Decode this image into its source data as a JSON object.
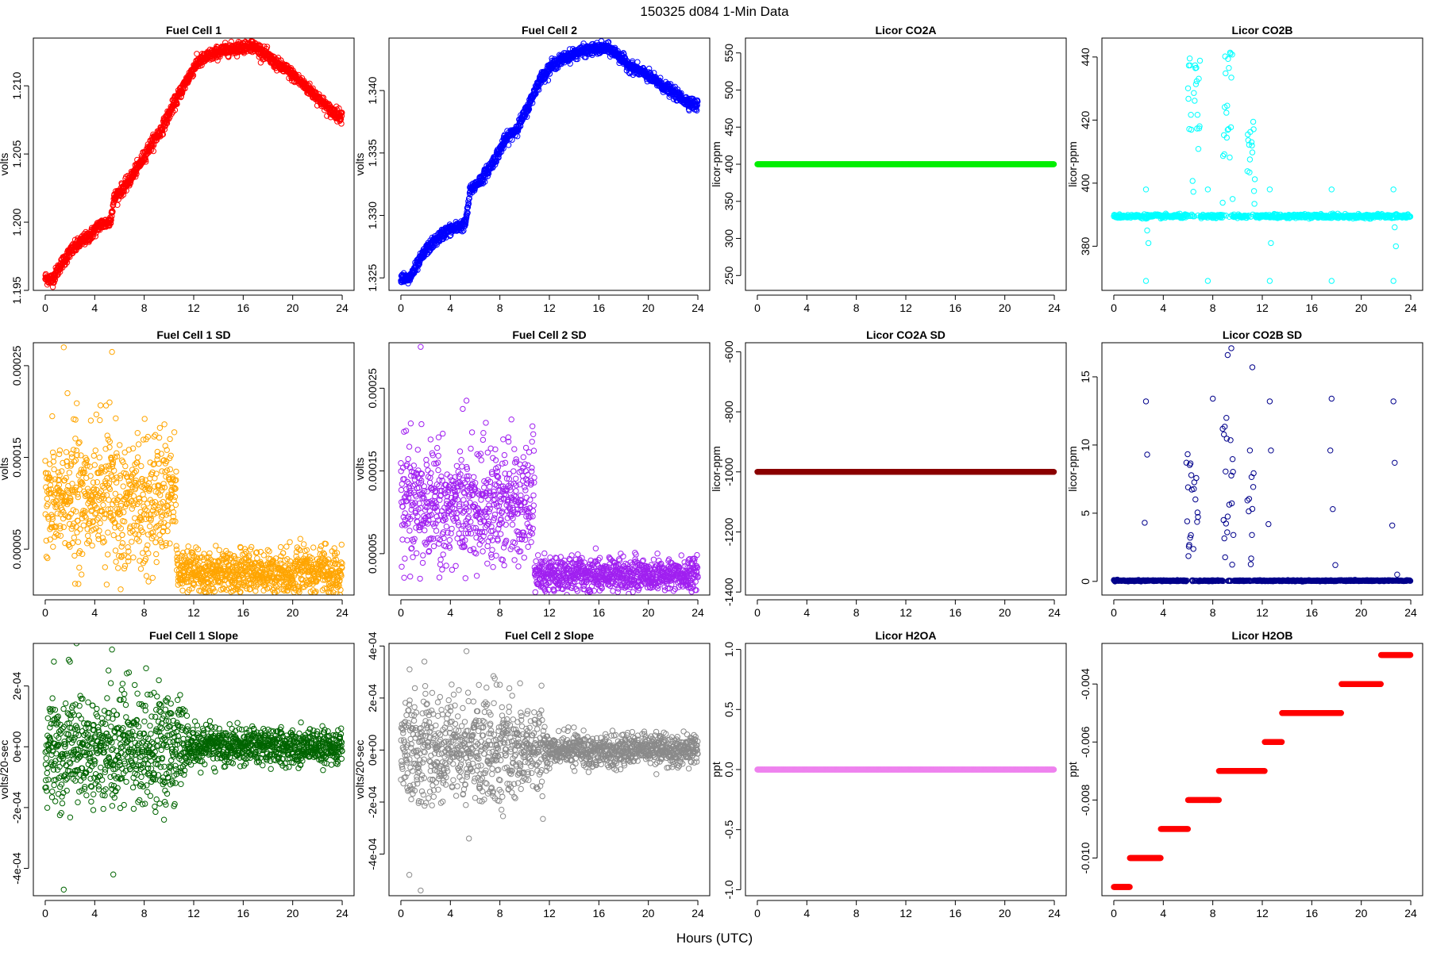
{
  "page": {
    "title": "150325   d084   1-Min Data",
    "x_axis_label": "Hours (UTC)"
  },
  "chart_data": [
    {
      "id": "fc1",
      "type": "scatter",
      "title": "Fuel Cell 1",
      "ylabel": "volts",
      "color": "#ff0000",
      "xlim": [
        0,
        24
      ],
      "xticks": [
        0,
        4,
        8,
        12,
        16,
        20,
        24
      ],
      "ylim": [
        1.195,
        1.2135
      ],
      "yticks": [
        1.195,
        1.2,
        1.205,
        1.21
      ],
      "ytick_labels": [
        "1.195",
        "1.200",
        "1.205",
        "1.210"
      ],
      "series_kind": "curve",
      "noise": 0.00022,
      "points": [
        [
          0,
          1.1959
        ],
        [
          0.6,
          1.1958
        ],
        [
          1.2,
          1.1968
        ],
        [
          2.0,
          1.1978
        ],
        [
          2.8,
          1.1985
        ],
        [
          3.6,
          1.199
        ],
        [
          4.4,
          1.1998
        ],
        [
          5.2,
          1.2
        ],
        [
          5.4,
          1.2008
        ],
        [
          5.6,
          1.2018
        ],
        [
          6.6,
          1.2028
        ],
        [
          7.6,
          1.2042
        ],
        [
          8.4,
          1.2055
        ],
        [
          9.4,
          1.2068
        ],
        [
          10.2,
          1.2083
        ],
        [
          11.2,
          1.21
        ],
        [
          12.2,
          1.2116
        ],
        [
          13.2,
          1.2122
        ],
        [
          14.4,
          1.2126
        ],
        [
          15.6,
          1.2128
        ],
        [
          16.6,
          1.213
        ],
        [
          17.4,
          1.2126
        ],
        [
          18.4,
          1.2118
        ],
        [
          19.6,
          1.2111
        ],
        [
          21.0,
          1.21
        ],
        [
          22.2,
          1.209
        ],
        [
          23.0,
          1.2082
        ],
        [
          23.9,
          1.2078
        ]
      ]
    },
    {
      "id": "fc2",
      "type": "scatter",
      "title": "Fuel Cell 2",
      "ylabel": "volts",
      "color": "#0000ff",
      "xlim": [
        0,
        24
      ],
      "xticks": [
        0,
        4,
        8,
        12,
        16,
        20,
        24
      ],
      "ylim": [
        1.324,
        1.3442
      ],
      "yticks": [
        1.325,
        1.33,
        1.335,
        1.34
      ],
      "ytick_labels": [
        "1.325",
        "1.330",
        "1.335",
        "1.340"
      ],
      "series_kind": "curve",
      "noise": 0.00022,
      "points": [
        [
          0,
          1.3251
        ],
        [
          0.6,
          1.3248
        ],
        [
          1.2,
          1.3258
        ],
        [
          2.0,
          1.3272
        ],
        [
          2.8,
          1.328
        ],
        [
          3.6,
          1.3287
        ],
        [
          4.4,
          1.329
        ],
        [
          5.2,
          1.3293
        ],
        [
          5.4,
          1.3305
        ],
        [
          5.6,
          1.332
        ],
        [
          6.6,
          1.333
        ],
        [
          7.6,
          1.3345
        ],
        [
          8.4,
          1.336
        ],
        [
          9.4,
          1.337
        ],
        [
          10.2,
          1.3385
        ],
        [
          11.2,
          1.3408
        ],
        [
          12.2,
          1.342
        ],
        [
          13.2,
          1.3426
        ],
        [
          14.4,
          1.3431
        ],
        [
          15.6,
          1.3433
        ],
        [
          16.6,
          1.3434
        ],
        [
          17.4,
          1.343
        ],
        [
          18.4,
          1.342
        ],
        [
          19.6,
          1.3414
        ],
        [
          21.0,
          1.3405
        ],
        [
          22.2,
          1.3397
        ],
        [
          23.0,
          1.3392
        ],
        [
          23.9,
          1.3388
        ]
      ]
    },
    {
      "id": "co2a",
      "type": "scatter",
      "title": "Licor CO2A",
      "ylabel": "licor-ppm",
      "color": "#00ee00",
      "xlim": [
        0,
        24
      ],
      "xticks": [
        0,
        4,
        8,
        12,
        16,
        20,
        24
      ],
      "ylim": [
        230,
        570
      ],
      "yticks": [
        250,
        300,
        350,
        400,
        450,
        500,
        550
      ],
      "ytick_labels": [
        "250",
        "300",
        "350",
        "400",
        "450",
        "500",
        "550"
      ],
      "series_kind": "constant",
      "value": 400
    },
    {
      "id": "co2b",
      "type": "scatter",
      "title": "Licor CO2B",
      "ylabel": "licor-ppm",
      "color": "#00ffff",
      "xlim": [
        0,
        24
      ],
      "xticks": [
        0,
        4,
        8,
        12,
        16,
        20,
        24
      ],
      "ylim": [
        366,
        446
      ],
      "yticks": [
        380,
        400,
        420,
        440
      ],
      "ytick_labels": [
        "380",
        "400",
        "420",
        "440"
      ],
      "series_kind": "baseline",
      "baseline": 389.5,
      "noise": 0.3,
      "bursts": [
        [
          6.0,
          7.0,
          392,
          440
        ],
        [
          8.8,
          9.6,
          392,
          444
        ],
        [
          10.8,
          11.4,
          392,
          420
        ]
      ],
      "outliers": [
        [
          2.6,
          398
        ],
        [
          2.6,
          369
        ],
        [
          2.7,
          385
        ],
        [
          2.8,
          381
        ],
        [
          7.6,
          398
        ],
        [
          7.6,
          369
        ],
        [
          12.6,
          398
        ],
        [
          12.6,
          369
        ],
        [
          12.7,
          381
        ],
        [
          17.6,
          398
        ],
        [
          17.6,
          369
        ],
        [
          22.6,
          398
        ],
        [
          22.6,
          369
        ],
        [
          22.7,
          386
        ],
        [
          22.8,
          380
        ]
      ]
    },
    {
      "id": "fc1sd",
      "type": "scatter",
      "title": "Fuel Cell 1 SD",
      "ylabel": "volts",
      "color": "#ffa500",
      "xlim": [
        0,
        24
      ],
      "xticks": [
        0,
        4,
        8,
        12,
        16,
        20,
        24
      ],
      "ylim": [
        0.0,
        0.000275
      ],
      "yticks": [
        5e-05,
        0.00015,
        0.00025
      ],
      "ytick_labels": [
        "0.00005",
        "0.00015",
        "0.00025"
      ],
      "series_kind": "scatter2",
      "seg1": [
        0,
        10.6,
        0.000105,
        3.5e-05
      ],
      "seg2": [
        10.6,
        24,
        2.5e-05,
        1.2e-05
      ],
      "outliers": [
        [
          1.5,
          0.00027
        ],
        [
          5.4,
          0.000265
        ],
        [
          1.8,
          0.00022
        ],
        [
          5.2,
          0.00021
        ]
      ]
    },
    {
      "id": "fc2sd",
      "type": "scatter",
      "title": "Fuel Cell 2 SD",
      "ylabel": "volts",
      "color": "#a020f0",
      "xlim": [
        0,
        24
      ],
      "xticks": [
        0,
        4,
        8,
        12,
        16,
        20,
        24
      ],
      "ylim": [
        0.0,
        0.000305
      ],
      "yticks": [
        5e-05,
        0.00015,
        0.00025
      ],
      "ytick_labels": [
        "0.00005",
        "0.00015",
        "0.00025"
      ],
      "series_kind": "scatter2",
      "seg1": [
        0,
        10.8,
        0.00011,
        3.5e-05
      ],
      "seg2": [
        10.8,
        24,
        2.5e-05,
        1e-05
      ],
      "outliers": [
        [
          1.6,
          0.0003
        ],
        [
          5.3,
          0.000235
        ],
        [
          5.0,
          0.000225
        ]
      ]
    },
    {
      "id": "co2asd",
      "type": "scatter",
      "title": "Licor CO2A SD",
      "ylabel": "licor-ppm",
      "color": "#8b0000",
      "xlim": [
        0,
        24
      ],
      "xticks": [
        0,
        4,
        8,
        12,
        16,
        20,
        24
      ],
      "ylim": [
        -1410,
        -570
      ],
      "yticks": [
        -1400,
        -1200,
        -1000,
        -800,
        -600
      ],
      "ytick_labels": [
        "-1400",
        "-1200",
        "-1000",
        "-800",
        "-600"
      ],
      "series_kind": "constant",
      "value": -1000
    },
    {
      "id": "co2bsd",
      "type": "scatter",
      "title": "Licor CO2B SD",
      "ylabel": "licor-ppm",
      "color": "#00008b",
      "xlim": [
        0,
        24
      ],
      "xticks": [
        0,
        4,
        8,
        12,
        16,
        20,
        24
      ],
      "ylim": [
        -1,
        17.5
      ],
      "yticks": [
        0,
        5,
        10,
        15
      ],
      "ytick_labels": [
        "0",
        "5",
        "10",
        "15"
      ],
      "series_kind": "baseline",
      "baseline": 0.05,
      "noise": 0.02,
      "bursts": [
        [
          5.8,
          6.8,
          0.3,
          9.5
        ],
        [
          8.8,
          9.7,
          0.3,
          12
        ],
        [
          10.8,
          11.3,
          0.3,
          8
        ]
      ],
      "outliers": [
        [
          2.6,
          13.2
        ],
        [
          2.7,
          9.3
        ],
        [
          2.5,
          4.3
        ],
        [
          8.0,
          13.4
        ],
        [
          9.2,
          16.6
        ],
        [
          9.5,
          17.1
        ],
        [
          11.2,
          15.7
        ],
        [
          11.0,
          9.6
        ],
        [
          12.6,
          13.2
        ],
        [
          12.7,
          9.6
        ],
        [
          12.5,
          4.2
        ],
        [
          17.6,
          13.4
        ],
        [
          17.5,
          9.6
        ],
        [
          17.7,
          5.3
        ],
        [
          17.9,
          1.2
        ],
        [
          22.6,
          13.2
        ],
        [
          22.7,
          8.7
        ],
        [
          22.5,
          4.1
        ],
        [
          22.9,
          0.5
        ]
      ]
    },
    {
      "id": "fc1slope",
      "type": "scatter",
      "title": "Fuel Cell 1 Slope",
      "ylabel": "volts/20-sec",
      "color": "#006400",
      "xlim": [
        0,
        24
      ],
      "xticks": [
        0,
        4,
        8,
        12,
        16,
        20,
        24
      ],
      "ylim": [
        -0.00049,
        0.00034
      ],
      "yticks": [
        -0.0004,
        -0.0002,
        0,
        0.0002
      ],
      "ytick_labels": [
        "-4e-04",
        "-2e-04",
        "0e+00",
        "2e-04"
      ],
      "series_kind": "scatter2",
      "seg1": [
        0,
        11.5,
        0.0,
        9e-05
      ],
      "seg2": [
        11.5,
        24,
        0.0,
        3e-05
      ],
      "outliers": [
        [
          1.5,
          -0.00047
        ],
        [
          5.5,
          -0.00042
        ],
        [
          5.4,
          0.00032
        ],
        [
          2.0,
          0.00028
        ],
        [
          0.7,
          0.00028
        ],
        [
          9.6,
          -0.00024
        ]
      ]
    },
    {
      "id": "fc2slope",
      "type": "scatter",
      "title": "Fuel Cell 2 Slope",
      "ylabel": "volts/20-sec",
      "color": "#8a8a8a",
      "xlim": [
        0,
        24
      ],
      "xticks": [
        0,
        4,
        8,
        12,
        16,
        20,
        24
      ],
      "ylim": [
        -0.00056,
        0.00041
      ],
      "yticks": [
        -0.0004,
        -0.0002,
        0,
        0.0002,
        0.0004
      ],
      "ytick_labels": [
        "-4e-04",
        "-2e-04",
        "0e+00",
        "2e-04",
        "4e-04"
      ],
      "series_kind": "scatter2",
      "seg1": [
        0,
        11.5,
        0.0,
        0.0001
      ],
      "seg2": [
        11.5,
        24,
        0.0,
        3e-05
      ],
      "outliers": [
        [
          1.6,
          -0.00054
        ],
        [
          5.3,
          0.00038
        ],
        [
          5.5,
          -0.00034
        ],
        [
          1.9,
          0.00034
        ],
        [
          0.7,
          0.00031
        ]
      ]
    },
    {
      "id": "h2oa",
      "type": "scatter",
      "title": "Licor H2OA",
      "ylabel": "ppt",
      "color": "#ee82ee",
      "xlim": [
        0,
        24
      ],
      "xticks": [
        0,
        4,
        8,
        12,
        16,
        20,
        24
      ],
      "ylim": [
        -1.05,
        1.05
      ],
      "yticks": [
        -1.0,
        -0.5,
        0.0,
        0.5,
        1.0
      ],
      "ytick_labels": [
        "-1.0",
        "-0.5",
        "0.0",
        "0.5",
        "1.0"
      ],
      "series_kind": "constant",
      "value": 0.0
    },
    {
      "id": "h2ob",
      "type": "scatter",
      "title": "Licor H2OB",
      "ylabel": "ppt",
      "color": "#ff0000",
      "xlim": [
        0,
        24
      ],
      "xticks": [
        0,
        4,
        8,
        12,
        16,
        20,
        24
      ],
      "ylim": [
        -0.0113,
        -0.0026
      ],
      "yticks": [
        -0.01,
        -0.008,
        -0.006,
        -0.004
      ],
      "ytick_labels": [
        "-0.010",
        "-0.008",
        "-0.006",
        "-0.004"
      ],
      "series_kind": "steps",
      "steps": [
        [
          0,
          1.3,
          -0.011
        ],
        [
          1.3,
          3.8,
          -0.01
        ],
        [
          3.8,
          6.0,
          -0.009
        ],
        [
          6.0,
          8.5,
          -0.008
        ],
        [
          8.5,
          12.2,
          -0.007
        ],
        [
          12.2,
          13.6,
          -0.006
        ],
        [
          13.6,
          18.4,
          -0.005
        ],
        [
          18.4,
          21.6,
          -0.004
        ],
        [
          21.6,
          24,
          -0.003
        ]
      ]
    }
  ]
}
